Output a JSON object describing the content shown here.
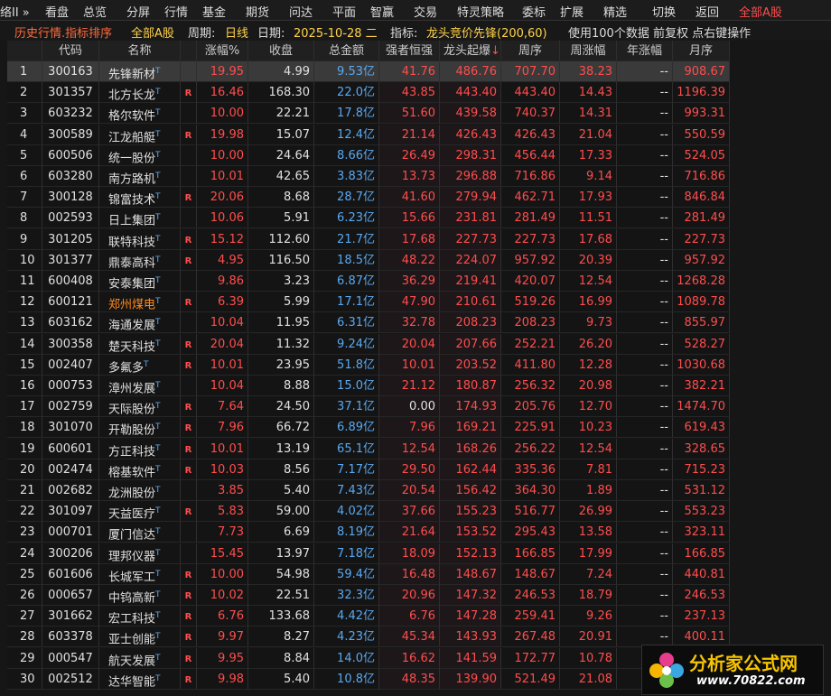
{
  "menu": {
    "items": [
      "络II »",
      "看盘",
      "总览",
      "分屏",
      "行情",
      "基金",
      "期货",
      "问达",
      "平面",
      "智赢",
      "交易",
      "特灵策略",
      "委标",
      "扩展",
      "精选",
      "切换",
      "返回"
    ],
    "right": "全部A股"
  },
  "toolbar": {
    "title": "历史行情.指标排序",
    "market": "全部A股",
    "period_label": "周期:",
    "period": "日线",
    "date_label": "日期:",
    "date": "2025-10-28 二",
    "indicator_label": "指标:",
    "indicator": "龙头竞价先锋(200,60)",
    "note": "使用100个数据 前复权 点右键操作"
  },
  "table": {
    "headers": [
      "代码",
      "名称",
      "涨幅%",
      "收盘",
      "总金额",
      "强者恒强",
      "龙头起爆",
      "周序",
      "周涨幅",
      "年涨幅",
      "月序"
    ],
    "sort_arrow": "↓",
    "rows": [
      [
        "1",
        "300163",
        "先锋新材",
        "T",
        null,
        "19.95",
        "4.99",
        "9.53亿",
        "41.76",
        "486.76",
        "707.70",
        "38.23",
        "--",
        "908.67"
      ],
      [
        "2",
        "301357",
        "北方长龙",
        "T",
        "R",
        "16.46",
        "168.30",
        "22.0亿",
        "43.85",
        "443.40",
        "443.40",
        "14.43",
        "--",
        "1196.39"
      ],
      [
        "3",
        "603232",
        "格尔软件",
        "T",
        null,
        "10.00",
        "22.21",
        "17.8亿",
        "51.60",
        "439.58",
        "740.37",
        "14.31",
        "--",
        "993.31"
      ],
      [
        "4",
        "300589",
        "江龙船艇",
        "T",
        "R",
        "19.98",
        "15.07",
        "12.4亿",
        "21.14",
        "426.43",
        "426.43",
        "21.04",
        "--",
        "550.59"
      ],
      [
        "5",
        "600506",
        "统一股份",
        "T",
        null,
        "10.00",
        "24.64",
        "8.66亿",
        "26.49",
        "298.31",
        "456.44",
        "17.33",
        "--",
        "524.05"
      ],
      [
        "6",
        "603280",
        "南方路机",
        "T",
        null,
        "10.01",
        "42.65",
        "3.83亿",
        "13.73",
        "296.88",
        "716.86",
        "9.14",
        "--",
        "716.86"
      ],
      [
        "7",
        "300128",
        "锦富技术",
        "T",
        "R",
        "20.06",
        "8.68",
        "28.7亿",
        "41.60",
        "279.94",
        "462.71",
        "17.93",
        "--",
        "846.84"
      ],
      [
        "8",
        "002593",
        "日上集团",
        "T",
        null,
        "10.06",
        "5.91",
        "6.23亿",
        "15.66",
        "231.81",
        "281.49",
        "11.51",
        "--",
        "281.49"
      ],
      [
        "9",
        "301205",
        "联特科技",
        "T",
        "R",
        "15.12",
        "112.60",
        "21.7亿",
        "17.68",
        "227.73",
        "227.73",
        "17.68",
        "--",
        "227.73"
      ],
      [
        "10",
        "301377",
        "鼎泰高科",
        "T",
        "R",
        "4.95",
        "116.50",
        "18.5亿",
        "48.22",
        "224.07",
        "957.92",
        "20.39",
        "--",
        "957.92"
      ],
      [
        "11",
        "600408",
        "安泰集团",
        "T",
        null,
        "9.86",
        "3.23",
        "6.87亿",
        "36.29",
        "219.41",
        "420.07",
        "12.54",
        "--",
        "1268.28"
      ],
      [
        "12",
        "600121",
        "郑州煤电",
        "T",
        "R",
        "6.39",
        "5.99",
        "17.1亿",
        "47.90",
        "210.61",
        "519.26",
        "16.99",
        "--",
        "1089.78"
      ],
      [
        "13",
        "603162",
        "海通发展",
        "T",
        null,
        "10.04",
        "11.95",
        "6.31亿",
        "32.78",
        "208.23",
        "208.23",
        "9.73",
        "--",
        "855.97"
      ],
      [
        "14",
        "300358",
        "楚天科技",
        "T",
        "R",
        "20.04",
        "11.32",
        "9.24亿",
        "20.04",
        "207.66",
        "252.21",
        "26.20",
        "--",
        "528.27"
      ],
      [
        "15",
        "002407",
        "多氟多",
        "T",
        "R",
        "10.01",
        "23.95",
        "51.8亿",
        "10.01",
        "203.52",
        "411.80",
        "12.28",
        "--",
        "1030.68"
      ],
      [
        "16",
        "000753",
        "漳州发展",
        "T",
        null,
        "10.04",
        "8.88",
        "15.0亿",
        "21.12",
        "180.87",
        "256.32",
        "20.98",
        "--",
        "382.21"
      ],
      [
        "17",
        "002759",
        "天际股份",
        "T",
        "R",
        "7.64",
        "24.50",
        "37.1亿",
        "0.00",
        "174.93",
        "205.76",
        "12.70",
        "--",
        "1474.70"
      ],
      [
        "18",
        "301070",
        "开勒股份",
        "T",
        "R",
        "7.96",
        "66.72",
        "6.89亿",
        "7.96",
        "169.21",
        "225.91",
        "10.23",
        "--",
        "619.43"
      ],
      [
        "19",
        "600601",
        "方正科技",
        "T",
        "R",
        "10.01",
        "13.19",
        "65.1亿",
        "12.54",
        "168.26",
        "256.22",
        "12.54",
        "--",
        "328.65"
      ],
      [
        "20",
        "002474",
        "榕基软件",
        "T",
        "R",
        "10.03",
        "8.56",
        "7.17亿",
        "29.50",
        "162.44",
        "335.36",
        "7.81",
        "--",
        "715.23"
      ],
      [
        "21",
        "002682",
        "龙洲股份",
        "T",
        null,
        "3.85",
        "5.40",
        "7.43亿",
        "20.54",
        "156.42",
        "364.30",
        "1.89",
        "--",
        "531.12"
      ],
      [
        "22",
        "301097",
        "天益医疗",
        "T",
        "R",
        "5.83",
        "59.00",
        "4.02亿",
        "37.66",
        "155.23",
        "516.77",
        "26.99",
        "--",
        "553.23"
      ],
      [
        "23",
        "000701",
        "厦门信达",
        "T",
        null,
        "7.73",
        "6.69",
        "8.19亿",
        "21.64",
        "153.52",
        "295.43",
        "13.58",
        "--",
        "323.11"
      ],
      [
        "24",
        "300206",
        "理邦仪器",
        "T",
        null,
        "15.45",
        "13.97",
        "7.18亿",
        "18.09",
        "152.13",
        "166.85",
        "17.99",
        "--",
        "166.85"
      ],
      [
        "25",
        "601606",
        "长城军工",
        "T",
        "R",
        "10.00",
        "54.98",
        "59.4亿",
        "16.48",
        "148.67",
        "148.67",
        "7.24",
        "--",
        "440.81"
      ],
      [
        "26",
        "000657",
        "中钨高新",
        "T",
        "R",
        "10.02",
        "22.51",
        "32.3亿",
        "20.96",
        "147.32",
        "246.53",
        "18.79",
        "--",
        "246.53"
      ],
      [
        "27",
        "301662",
        "宏工科技",
        "T",
        "R",
        "6.76",
        "133.68",
        "4.42亿",
        "6.76",
        "147.28",
        "259.41",
        "9.26",
        "--",
        "237.13"
      ],
      [
        "28",
        "603378",
        "亚士创能",
        "T",
        "R",
        "9.97",
        "8.27",
        "4.23亿",
        "45.34",
        "143.93",
        "267.48",
        "20.91",
        "--",
        "400.11"
      ],
      [
        "29",
        "000547",
        "航天发展",
        "T",
        "R",
        "9.95",
        "8.84",
        "14.0亿",
        "16.62",
        "141.59",
        "172.77",
        "10.78",
        "--",
        null
      ],
      [
        "30",
        "002512",
        "达华智能",
        "T",
        "R",
        "9.98",
        "5.40",
        "10.8亿",
        "48.35",
        "139.90",
        "521.49",
        "21.08",
        "--",
        null
      ]
    ]
  },
  "watermark": {
    "title": "分析家公式网",
    "url": "www.70822.com"
  }
}
